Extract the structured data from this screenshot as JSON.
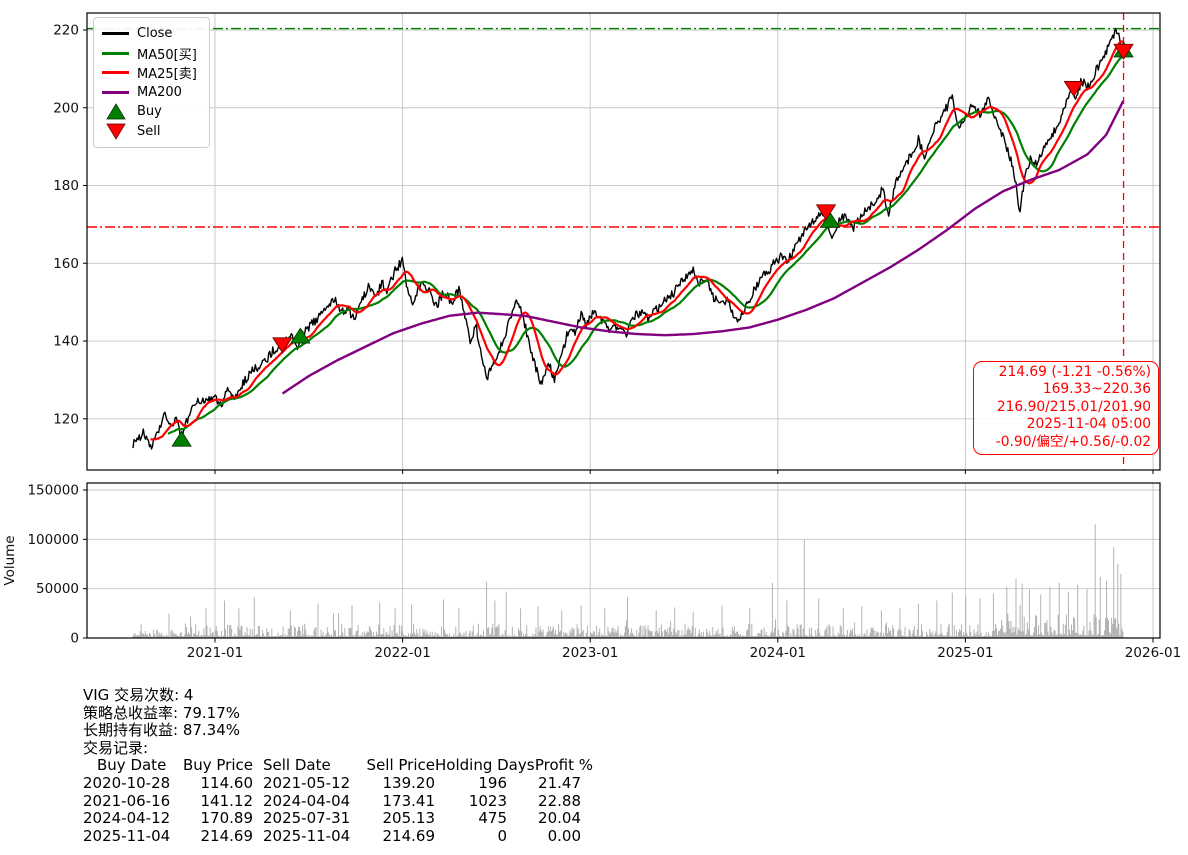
{
  "chart_data": [
    {
      "type": "line",
      "name": "price-panel",
      "ylim": [
        107,
        224
      ],
      "yticks": [
        120,
        140,
        160,
        180,
        200,
        220
      ],
      "xticks": [
        {
          "year": 2021,
          "label": "2021-01"
        },
        {
          "year": 2022,
          "label": "2022-01"
        },
        {
          "year": 2023,
          "label": "2023-01"
        },
        {
          "year": 2024,
          "label": "2024-01"
        },
        {
          "year": 2025,
          "label": "2025-01"
        },
        {
          "year": 2026,
          "label": "2026-01"
        }
      ],
      "colors": {
        "close": "#000000",
        "ma50": "#008000",
        "ma25": "#ff0000",
        "ma200": "#800080",
        "buy": "#008000",
        "sell": "#ff0000"
      },
      "hlines": [
        {
          "value": 220.36,
          "color": "#008000",
          "style": "dashdot"
        },
        {
          "value": 169.33,
          "color": "#ff0000",
          "style": "dashdot"
        }
      ],
      "vline": {
        "year": 2025.843,
        "date": "2025-11-04",
        "color": "#ff0000",
        "style": "dashed"
      },
      "close_anchors": [
        [
          2020.563,
          113.5
        ],
        [
          2020.62,
          116.5
        ],
        [
          2020.66,
          112.5
        ],
        [
          2020.7,
          117
        ],
        [
          2020.73,
          121
        ],
        [
          2020.76,
          118
        ],
        [
          2020.79,
          120
        ],
        [
          2020.822,
          114.8
        ],
        [
          2020.86,
          121
        ],
        [
          2020.9,
          124
        ],
        [
          2020.95,
          125
        ],
        [
          2021.0,
          125.5
        ],
        [
          2021.03,
          123.5
        ],
        [
          2021.07,
          127.5
        ],
        [
          2021.1,
          125.5
        ],
        [
          2021.15,
          129
        ],
        [
          2021.19,
          132
        ],
        [
          2021.23,
          133.5
        ],
        [
          2021.27,
          135
        ],
        [
          2021.31,
          137.5
        ],
        [
          2021.359,
          139.5
        ],
        [
          2021.4,
          141.5
        ],
        [
          2021.44,
          138.5
        ],
        [
          2021.455,
          141.1
        ],
        [
          2021.5,
          143.5
        ],
        [
          2021.55,
          146
        ],
        [
          2021.6,
          149
        ],
        [
          2021.64,
          150.5
        ],
        [
          2021.68,
          147.5
        ],
        [
          2021.71,
          148.5
        ],
        [
          2021.74,
          145.3
        ],
        [
          2021.78,
          150
        ],
        [
          2021.82,
          154
        ],
        [
          2021.86,
          151.5
        ],
        [
          2021.89,
          155
        ],
        [
          2021.92,
          153
        ],
        [
          2021.96,
          158
        ],
        [
          2022.0,
          161
        ],
        [
          2022.02,
          155
        ],
        [
          2022.05,
          150
        ],
        [
          2022.08,
          153
        ],
        [
          2022.11,
          155.5
        ],
        [
          2022.14,
          153
        ],
        [
          2022.18,
          149
        ],
        [
          2022.22,
          152.5
        ],
        [
          2022.26,
          150
        ],
        [
          2022.3,
          153
        ],
        [
          2022.33,
          147
        ],
        [
          2022.36,
          140
        ],
        [
          2022.39,
          144
        ],
        [
          2022.42,
          136
        ],
        [
          2022.45,
          130.5
        ],
        [
          2022.49,
          135
        ],
        [
          2022.53,
          139
        ],
        [
          2022.57,
          145
        ],
        [
          2022.61,
          151
        ],
        [
          2022.64,
          147
        ],
        [
          2022.68,
          138
        ],
        [
          2022.71,
          133
        ],
        [
          2022.74,
          128.7
        ],
        [
          2022.78,
          134
        ],
        [
          2022.81,
          130
        ],
        [
          2022.85,
          137
        ],
        [
          2022.89,
          144
        ],
        [
          2022.92,
          142
        ],
        [
          2022.95,
          147
        ],
        [
          2022.98,
          144
        ],
        [
          2023.02,
          148
        ],
        [
          2023.06,
          145
        ],
        [
          2023.1,
          142.5
        ],
        [
          2023.14,
          144
        ],
        [
          2023.19,
          141
        ],
        [
          2023.23,
          146
        ],
        [
          2023.27,
          147.5
        ],
        [
          2023.31,
          145.5
        ],
        [
          2023.35,
          148
        ],
        [
          2023.39,
          150
        ],
        [
          2023.44,
          152
        ],
        [
          2023.48,
          155
        ],
        [
          2023.52,
          157
        ],
        [
          2023.55,
          158
        ],
        [
          2023.58,
          155
        ],
        [
          2023.62,
          156
        ],
        [
          2023.66,
          151
        ],
        [
          2023.7,
          149
        ],
        [
          2023.73,
          151
        ],
        [
          2023.76,
          147
        ],
        [
          2023.79,
          145
        ],
        [
          2023.83,
          149
        ],
        [
          2023.87,
          153
        ],
        [
          2023.91,
          156
        ],
        [
          2023.95,
          158
        ],
        [
          2023.98,
          160
        ],
        [
          2024.02,
          162
        ],
        [
          2024.05,
          160
        ],
        [
          2024.09,
          164
        ],
        [
          2024.13,
          167
        ],
        [
          2024.17,
          170
        ],
        [
          2024.21,
          172
        ],
        [
          2024.257,
          173.4
        ],
        [
          2024.27,
          169
        ],
        [
          2024.29,
          166.5
        ],
        [
          2024.32,
          170.9
        ],
        [
          2024.36,
          172
        ],
        [
          2024.4,
          169
        ],
        [
          2024.44,
          172
        ],
        [
          2024.48,
          174
        ],
        [
          2024.52,
          176
        ],
        [
          2024.56,
          179
        ],
        [
          2024.59,
          172.5
        ],
        [
          2024.63,
          181
        ],
        [
          2024.67,
          184
        ],
        [
          2024.71,
          188
        ],
        [
          2024.75,
          192
        ],
        [
          2024.78,
          187
        ],
        [
          2024.82,
          193
        ],
        [
          2024.86,
          197
        ],
        [
          2024.9,
          200
        ],
        [
          2024.93,
          203
        ],
        [
          2024.96,
          194
        ],
        [
          2025.0,
          198
        ],
        [
          2025.04,
          201
        ],
        [
          2025.08,
          198
        ],
        [
          2025.12,
          203
        ],
        [
          2025.16,
          197
        ],
        [
          2025.2,
          193
        ],
        [
          2025.24,
          187
        ],
        [
          2025.27,
          180
        ],
        [
          2025.29,
          172.5
        ],
        [
          2025.32,
          184
        ],
        [
          2025.35,
          187
        ],
        [
          2025.38,
          185
        ],
        [
          2025.42,
          190
        ],
        [
          2025.46,
          193
        ],
        [
          2025.5,
          196
        ],
        [
          2025.53,
          200
        ],
        [
          2025.56,
          205
        ],
        [
          2025.58,
          202
        ],
        [
          2025.62,
          207
        ],
        [
          2025.66,
          205
        ],
        [
          2025.7,
          210
        ],
        [
          2025.74,
          214
        ],
        [
          2025.78,
          217
        ],
        [
          2025.81,
          220.3
        ],
        [
          2025.83,
          215
        ],
        [
          2025.843,
          214.69
        ]
      ],
      "ma200_anchors": [
        [
          2021.36,
          126.5
        ],
        [
          2021.5,
          131
        ],
        [
          2021.65,
          135
        ],
        [
          2021.8,
          138.5
        ],
        [
          2021.95,
          142
        ],
        [
          2022.1,
          144.5
        ],
        [
          2022.25,
          146.5
        ],
        [
          2022.4,
          147.3
        ],
        [
          2022.5,
          147
        ],
        [
          2022.65,
          146.5
        ],
        [
          2022.8,
          145
        ],
        [
          2022.95,
          143.5
        ],
        [
          2023.1,
          142.5
        ],
        [
          2023.25,
          141.8
        ],
        [
          2023.4,
          141.5
        ],
        [
          2023.55,
          141.8
        ],
        [
          2023.7,
          142.5
        ],
        [
          2023.85,
          143.5
        ],
        [
          2024.0,
          145.5
        ],
        [
          2024.15,
          148
        ],
        [
          2024.3,
          151
        ],
        [
          2024.45,
          155
        ],
        [
          2024.6,
          159
        ],
        [
          2024.75,
          163.5
        ],
        [
          2024.9,
          168.5
        ],
        [
          2025.05,
          174
        ],
        [
          2025.2,
          178.5
        ],
        [
          2025.35,
          181.5
        ],
        [
          2025.5,
          184
        ],
        [
          2025.65,
          188
        ],
        [
          2025.75,
          193
        ],
        [
          2025.843,
          201.9
        ]
      ],
      "buy_signals": [
        {
          "date": "2020-10-28",
          "year": 2020.822,
          "price": 114.6
        },
        {
          "date": "2021-06-16",
          "year": 2021.455,
          "price": 141.12
        },
        {
          "date": "2024-04-12",
          "year": 2024.279,
          "price": 170.89
        },
        {
          "date": "2025-11-04",
          "year": 2025.843,
          "price": 214.69
        }
      ],
      "sell_signals": [
        {
          "date": "2021-05-12",
          "year": 2021.359,
          "price": 139.2
        },
        {
          "date": "2024-04-04",
          "year": 2024.257,
          "price": 173.41
        },
        {
          "date": "2025-07-31",
          "year": 2025.578,
          "price": 205.13
        },
        {
          "date": "2025-11-04",
          "year": 2025.843,
          "price": 214.69
        }
      ],
      "annotation": {
        "lines": [
          "214.69 (-1.21 -0.56%)",
          "169.33~220.36",
          "216.90/215.01/201.90",
          "2025-11-04 05:00",
          "-0.90/偏空/+0.56/-0.02"
        ]
      }
    },
    {
      "type": "bar",
      "name": "volume-panel",
      "ylabel": "Volume",
      "yticks": [
        0,
        50000,
        100000,
        150000
      ],
      "bar_color": "#b3b3b3",
      "spikes": [
        [
          2020.87,
          22000
        ],
        [
          2020.95,
          30000
        ],
        [
          2021.05,
          38000
        ],
        [
          2021.13,
          30000
        ],
        [
          2021.21,
          41000
        ],
        [
          2021.4,
          28000
        ],
        [
          2021.55,
          35000
        ],
        [
          2021.63,
          25000
        ],
        [
          2021.73,
          33000
        ],
        [
          2021.88,
          36000
        ],
        [
          2021.96,
          30000
        ],
        [
          2022.05,
          34000
        ],
        [
          2022.22,
          39000
        ],
        [
          2022.3,
          30000
        ],
        [
          2022.45,
          57000
        ],
        [
          2022.49,
          38000
        ],
        [
          2022.55,
          47000
        ],
        [
          2022.63,
          30000
        ],
        [
          2022.72,
          32000
        ],
        [
          2022.85,
          28000
        ],
        [
          2022.95,
          33000
        ],
        [
          2023.08,
          30000
        ],
        [
          2023.2,
          41000
        ],
        [
          2023.35,
          28000
        ],
        [
          2023.45,
          31000
        ],
        [
          2023.55,
          26000
        ],
        [
          2023.7,
          33000
        ],
        [
          2023.85,
          30000
        ],
        [
          2023.97,
          56000
        ],
        [
          2024.05,
          38000
        ],
        [
          2024.14,
          100000
        ],
        [
          2024.22,
          40000
        ],
        [
          2024.35,
          30000
        ],
        [
          2024.45,
          32000
        ],
        [
          2024.55,
          28000
        ],
        [
          2024.65,
          30000
        ],
        [
          2024.75,
          35000
        ],
        [
          2024.85,
          38000
        ],
        [
          2024.93,
          46000
        ],
        [
          2025.0,
          42000
        ],
        [
          2025.08,
          40000
        ],
        [
          2025.15,
          45000
        ],
        [
          2025.22,
          52000
        ],
        [
          2025.27,
          60000
        ],
        [
          2025.3,
          55000
        ],
        [
          2025.34,
          50000
        ],
        [
          2025.4,
          44000
        ],
        [
          2025.45,
          52000
        ],
        [
          2025.5,
          56000
        ],
        [
          2025.55,
          47000
        ],
        [
          2025.6,
          54000
        ],
        [
          2025.65,
          50000
        ],
        [
          2025.69,
          115000
        ],
        [
          2025.72,
          62000
        ],
        [
          2025.75,
          58000
        ],
        [
          2025.79,
          92000
        ],
        [
          2025.81,
          75000
        ],
        [
          2025.83,
          65000
        ]
      ]
    }
  ],
  "legend": {
    "items": [
      {
        "label": "Close",
        "color": "#000000",
        "type": "line"
      },
      {
        "label": "MA50[买]",
        "color": "#008000",
        "type": "line"
      },
      {
        "label": "MA25[卖]",
        "color": "#ff0000",
        "type": "line"
      },
      {
        "label": "MA200",
        "color": "#800080",
        "type": "line"
      },
      {
        "label": "Buy",
        "color": "#008000",
        "type": "triangle-up"
      },
      {
        "label": "Sell",
        "color": "#ff0000",
        "type": "triangle-down"
      }
    ]
  },
  "stats": {
    "lines": [
      "VIG 交易次数: 4",
      "策略总收益率: 79.17%",
      "长期持有收益: 87.34%",
      "交易记录:"
    ],
    "table": {
      "headers": [
        "Buy Date",
        "Buy Price",
        "Sell Date",
        "Sell Price",
        "Holding Days",
        "Profit %"
      ],
      "rows": [
        [
          "2020-10-28",
          "114.60",
          "2021-05-12",
          "139.20",
          "196",
          "21.47"
        ],
        [
          "2021-06-16",
          "141.12",
          "2024-04-04",
          "173.41",
          "1023",
          "22.88"
        ],
        [
          "2024-04-12",
          "170.89",
          "2025-07-31",
          "205.13",
          "475",
          "20.04"
        ],
        [
          "2025-11-04",
          "214.69",
          "2025-11-04",
          "214.69",
          "0",
          "0.00"
        ]
      ]
    }
  }
}
